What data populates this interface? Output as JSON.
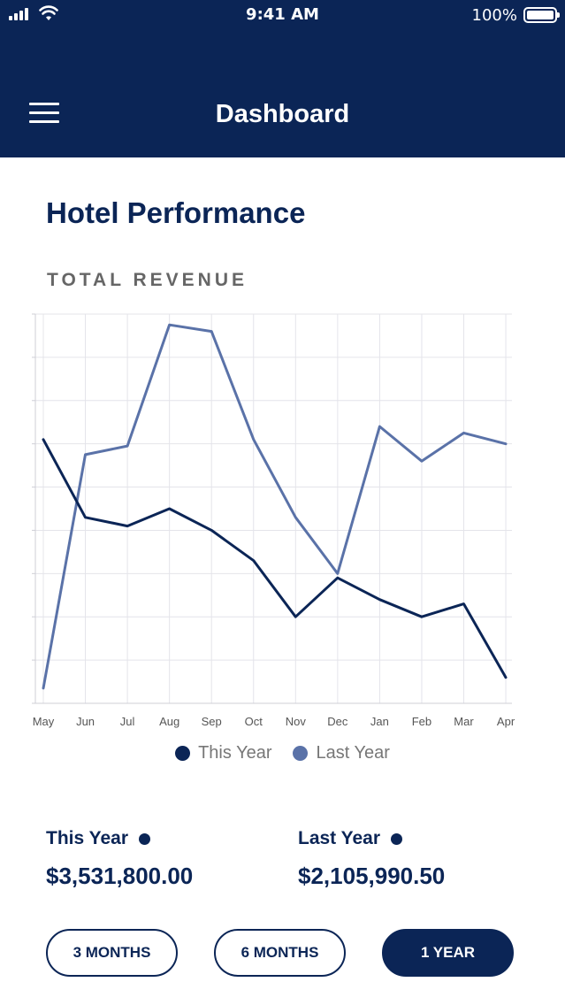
{
  "status_bar": {
    "time": "9:41 AM",
    "battery": "100%"
  },
  "header": {
    "title": "Dashboard"
  },
  "page": {
    "title": "Hotel Performance",
    "section_label": "TOTAL REVENUE"
  },
  "legend": [
    {
      "label": "This Year",
      "color": "#0b2556"
    },
    {
      "label": "Last Year",
      "color": "#5a72a8"
    }
  ],
  "totals": {
    "this_year": {
      "label": "This Year",
      "value": "$3,531,800.00"
    },
    "last_year": {
      "label": "Last Year",
      "value": "$2,105,990.50"
    }
  },
  "range_buttons": [
    {
      "label": "3 MONTHS",
      "active": false
    },
    {
      "label": "6 MONTHS",
      "active": false
    },
    {
      "label": "1 YEAR",
      "active": true
    }
  ],
  "chart_data": {
    "type": "line",
    "x": [
      "May",
      "Jun",
      "Jul",
      "Aug",
      "Sep",
      "Oct",
      "Nov",
      "Dec",
      "Jan",
      "Feb",
      "Mar",
      "Apr"
    ],
    "ylim": [
      0,
      9
    ],
    "grid": true,
    "legend_position": "bottom-center",
    "series": [
      {
        "name": "This Year",
        "color": "#0b2556",
        "values": [
          6.1,
          4.3,
          4.1,
          4.5,
          4.0,
          3.3,
          2.0,
          2.9,
          2.4,
          2.0,
          2.3,
          0.6
        ]
      },
      {
        "name": "Last Year",
        "color": "#5a72a8",
        "values": [
          0.35,
          5.75,
          5.95,
          8.75,
          8.6,
          6.1,
          4.3,
          3.0,
          6.4,
          5.6,
          6.25,
          6.0
        ]
      }
    ]
  }
}
